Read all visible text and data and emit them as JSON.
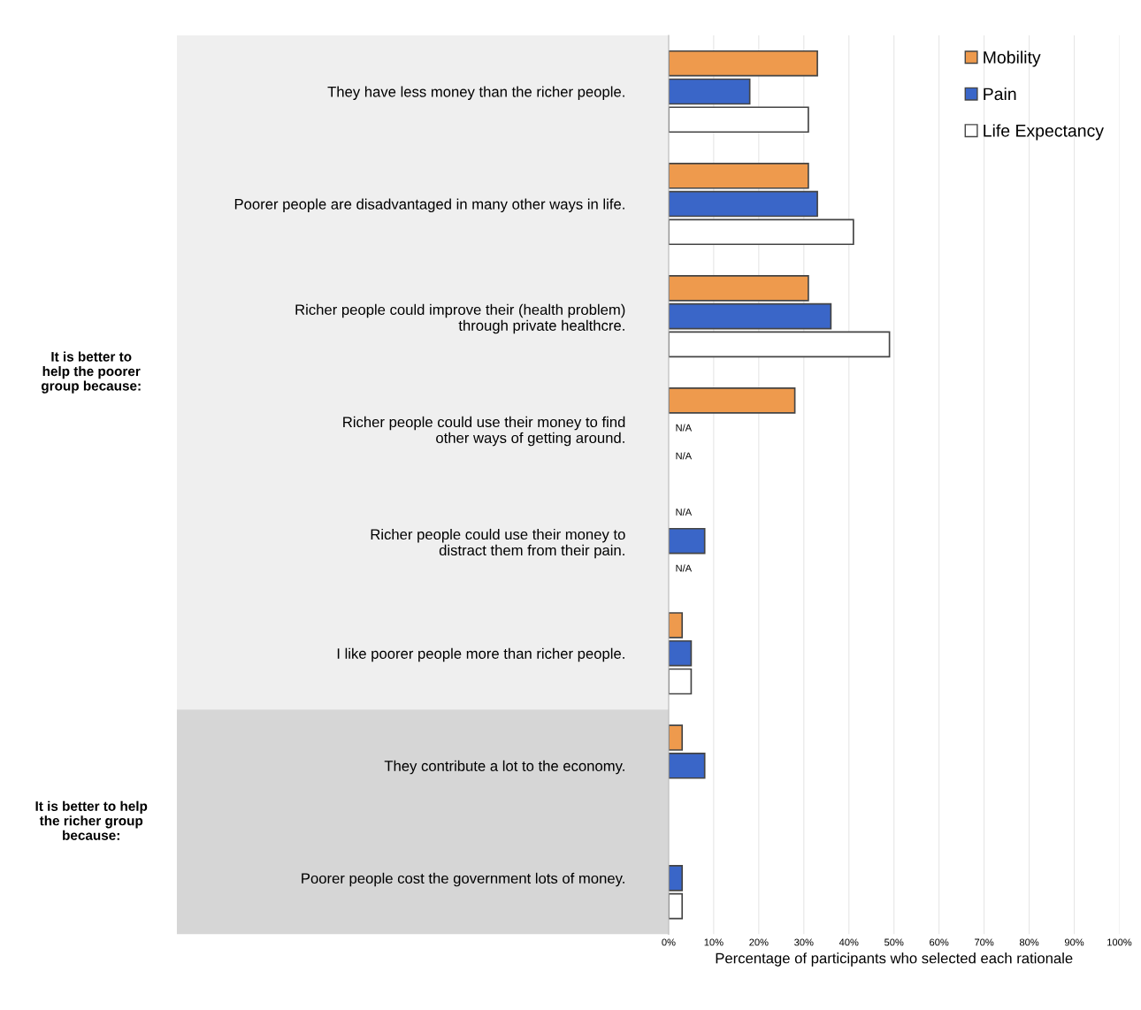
{
  "chart_data": {
    "type": "bar",
    "orientation": "horizontal",
    "xlabel": "Percentage of participants who selected each rationale",
    "categories": [
      "They have less money than the richer people.",
      "Poorer people are disadvantaged in many other ways in life.",
      "Richer people could improve their (health problem)\nthrough private healthcre.",
      "Richer people could use their money to find\nother ways of getting around.",
      "Richer people could use their money to\ndistract them from their pain.",
      "I like poorer people more than richer people.",
      "They contribute a lot to the economy.",
      "Poorer people cost the government lots of money."
    ],
    "series": [
      {
        "name": "Mobility",
        "color": "#ee9a4d",
        "values": [
          33,
          31,
          31,
          28,
          null,
          3,
          3,
          null
        ],
        "value_labels": [
          null,
          null,
          null,
          null,
          "N/A",
          null,
          null,
          null
        ]
      },
      {
        "name": "Pain",
        "color": "#3a66c8",
        "values": [
          18,
          33,
          36,
          null,
          8,
          5,
          8,
          3
        ],
        "value_labels": [
          null,
          null,
          null,
          "N/A",
          null,
          null,
          null,
          null
        ]
      },
      {
        "name": "Life Expectancy",
        "color": "#ffffff",
        "values": [
          31,
          41,
          49,
          null,
          null,
          5,
          null,
          3
        ],
        "value_labels": [
          null,
          null,
          null,
          "N/A",
          "N/A",
          null,
          null,
          null
        ]
      }
    ],
    "xlim": [
      0,
      100
    ],
    "xticks": [
      {
        "value": 0,
        "label": "0%"
      },
      {
        "value": 10,
        "label": "10%"
      },
      {
        "value": 20,
        "label": "20%"
      },
      {
        "value": 30,
        "label": "30%"
      },
      {
        "value": 40,
        "label": "40%"
      },
      {
        "value": 50,
        "label": "50%"
      },
      {
        "value": 60,
        "label": "60%"
      },
      {
        "value": 70,
        "label": "70%"
      },
      {
        "value": 80,
        "label": "80%"
      },
      {
        "value": 90,
        "label": "90%"
      },
      {
        "value": 100,
        "label": "100%"
      }
    ],
    "annotations": [
      "It is better to\nhelp the poorer\ngroup because:",
      "It is better to help\nthe richer group\nbecause:"
    ],
    "grid": "x",
    "legend": "top right"
  }
}
